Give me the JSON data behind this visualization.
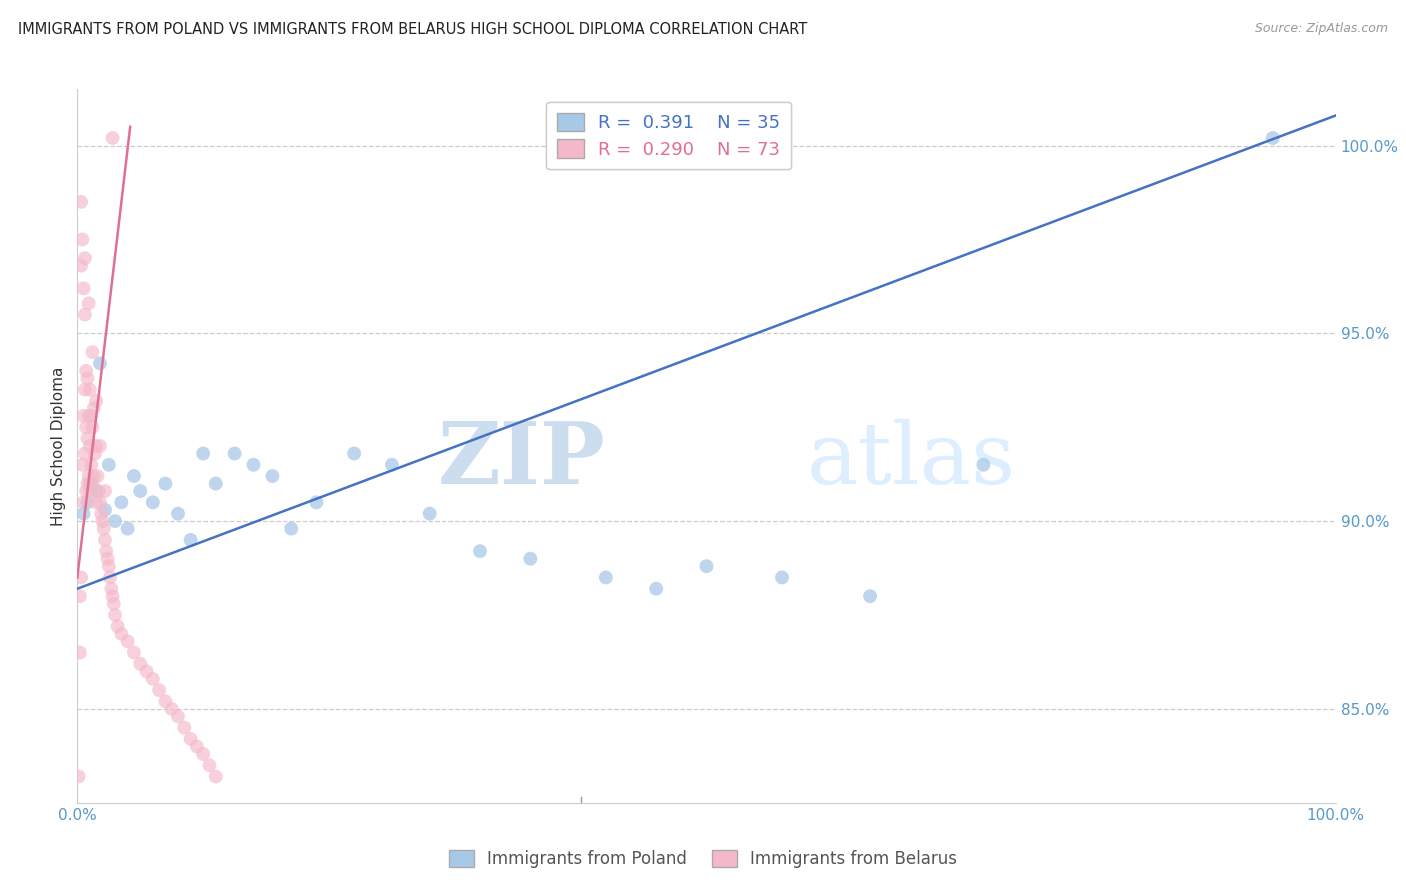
{
  "title": "IMMIGRANTS FROM POLAND VS IMMIGRANTS FROM BELARUS HIGH SCHOOL DIPLOMA CORRELATION CHART",
  "source": "Source: ZipAtlas.com",
  "ylabel": "High School Diploma",
  "legend_label_blue": "Immigrants from Poland",
  "legend_label_pink": "Immigrants from Belarus",
  "R_blue": 0.391,
  "N_blue": 35,
  "R_pink": 0.29,
  "N_pink": 73,
  "blue_color": "#a8c8e8",
  "pink_color": "#f4b8c8",
  "blue_line_color": "#4472c4",
  "pink_line_color": "#e07090",
  "watermark_zip": "ZIP",
  "watermark_atlas": "atlas",
  "xlim": [
    0.0,
    100.0
  ],
  "ylim": [
    82.5,
    101.5
  ],
  "yticks": [
    85.0,
    90.0,
    95.0,
    100.0
  ],
  "xtick_labels": [
    "0.0%",
    "100.0%"
  ],
  "xtick_positions": [
    0.0,
    100.0
  ],
  "blue_scatter_x": [
    0.5,
    0.8,
    1.0,
    1.5,
    1.8,
    2.2,
    2.5,
    3.0,
    3.5,
    4.0,
    4.5,
    5.0,
    6.0,
    7.0,
    8.0,
    9.0,
    10.0,
    11.0,
    12.5,
    14.0,
    15.5,
    17.0,
    19.0,
    22.0,
    25.0,
    28.0,
    32.0,
    36.0,
    42.0,
    46.0,
    50.0,
    56.0,
    63.0,
    72.0,
    95.0
  ],
  "blue_scatter_y": [
    90.2,
    90.5,
    91.0,
    90.8,
    94.2,
    90.3,
    91.5,
    90.0,
    90.5,
    89.8,
    91.2,
    90.8,
    90.5,
    91.0,
    90.2,
    89.5,
    91.8,
    91.0,
    91.8,
    91.5,
    91.2,
    89.8,
    90.5,
    91.8,
    91.5,
    90.2,
    89.2,
    89.0,
    88.5,
    88.2,
    88.8,
    88.5,
    88.0,
    91.5,
    100.2
  ],
  "pink_scatter_x": [
    0.1,
    0.2,
    0.2,
    0.3,
    0.3,
    0.4,
    0.4,
    0.5,
    0.5,
    0.5,
    0.6,
    0.6,
    0.6,
    0.7,
    0.7,
    0.7,
    0.8,
    0.8,
    0.8,
    0.9,
    0.9,
    1.0,
    1.0,
    1.0,
    1.1,
    1.1,
    1.2,
    1.2,
    1.3,
    1.3,
    1.4,
    1.5,
    1.5,
    1.6,
    1.7,
    1.8,
    1.9,
    2.0,
    2.1,
    2.2,
    2.3,
    2.4,
    2.5,
    2.6,
    2.7,
    2.8,
    2.9,
    3.0,
    3.2,
    3.5,
    4.0,
    4.5,
    5.0,
    5.5,
    6.0,
    6.5,
    7.0,
    7.5,
    8.0,
    8.5,
    9.0,
    9.5,
    10.0,
    10.5,
    11.0,
    2.8,
    0.3,
    0.6,
    0.9,
    1.2,
    1.5,
    1.8,
    2.2
  ],
  "pink_scatter_y": [
    83.2,
    86.5,
    88.0,
    88.5,
    96.8,
    91.5,
    97.5,
    90.5,
    92.8,
    96.2,
    91.8,
    93.5,
    95.5,
    90.8,
    92.5,
    94.0,
    91.0,
    92.2,
    93.8,
    91.2,
    92.8,
    90.8,
    92.0,
    93.5,
    91.5,
    92.8,
    91.0,
    92.5,
    91.2,
    93.0,
    91.8,
    90.5,
    92.0,
    91.2,
    90.8,
    90.5,
    90.2,
    90.0,
    89.8,
    89.5,
    89.2,
    89.0,
    88.8,
    88.5,
    88.2,
    88.0,
    87.8,
    87.5,
    87.2,
    87.0,
    86.8,
    86.5,
    86.2,
    86.0,
    85.8,
    85.5,
    85.2,
    85.0,
    84.8,
    84.5,
    84.2,
    84.0,
    83.8,
    83.5,
    83.2,
    100.2,
    98.5,
    97.0,
    95.8,
    94.5,
    93.2,
    92.0,
    90.8
  ],
  "blue_line_x": [
    0.0,
    100.0
  ],
  "blue_line_y": [
    88.2,
    100.8
  ],
  "pink_line_x": [
    0.0,
    4.2
  ],
  "pink_line_y": [
    88.5,
    100.5
  ]
}
